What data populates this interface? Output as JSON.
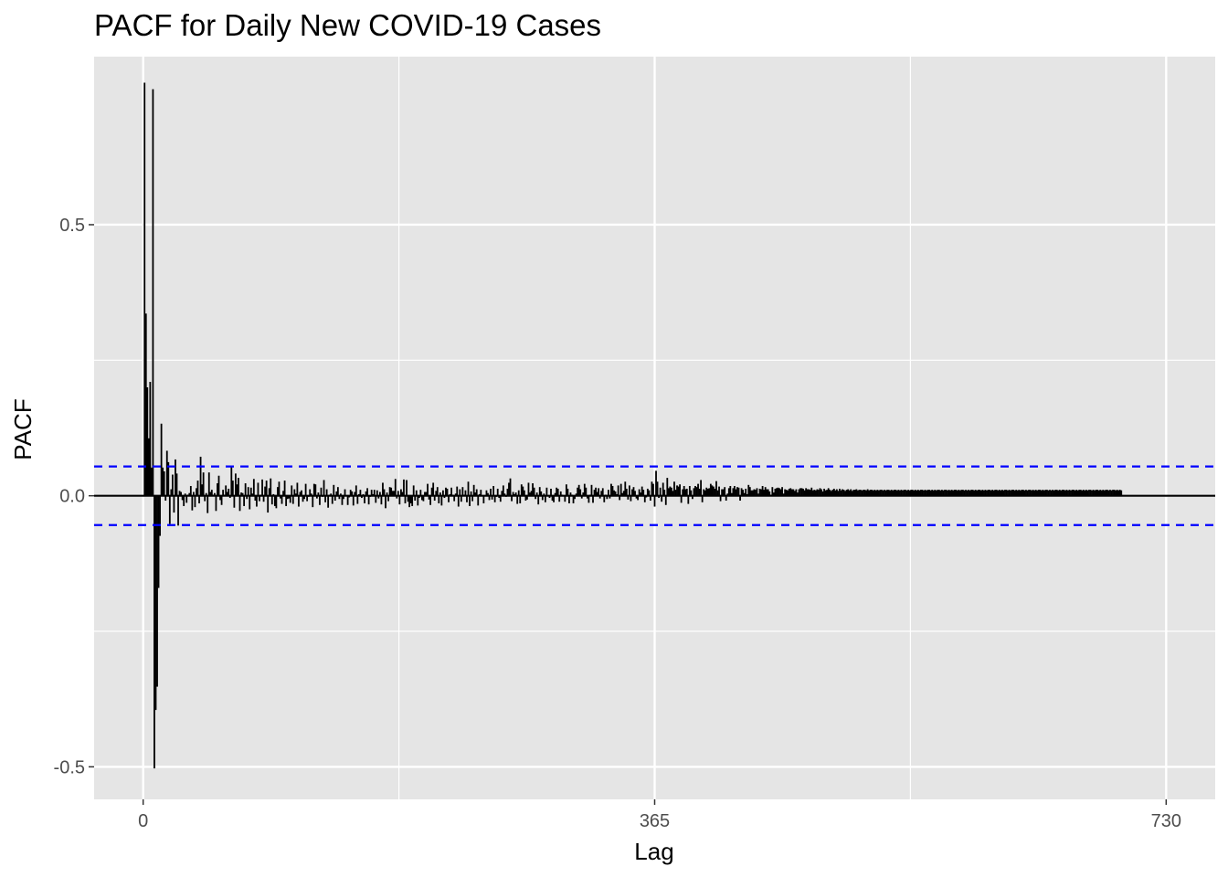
{
  "chart_data": {
    "type": "bar",
    "title": "PACF for Daily New COVID-19 Cases",
    "xlabel": "Lag",
    "ylabel": "PACF",
    "xlim": [
      -35,
      765
    ],
    "ylim": [
      -0.56,
      0.81
    ],
    "x_ticks": [
      0,
      365,
      730
    ],
    "x_tick_labels": [
      "0",
      "365",
      "730"
    ],
    "y_ticks": [
      -0.5,
      0.0,
      0.5
    ],
    "y_tick_labels": [
      "-0.5",
      "0.0",
      "0.5"
    ],
    "y_minor_ticks": [
      -0.25,
      0.25
    ],
    "x_minor_ticks": [
      182.5,
      547.5
    ],
    "confidence_bound": 0.054,
    "grid": true,
    "legend": "none",
    "series": [
      {
        "values": [
          0.762,
          0.336,
          0.2,
          0.106,
          0.21,
          0.052,
          0.75,
          -0.503,
          -0.395,
          -0.352,
          -0.17,
          -0.074,
          0.133,
          0.052,
          0.045,
          -0.009,
          0.083,
          0.062,
          -0.052,
          0.012,
          0.039,
          -0.031,
          0.067,
          0.041,
          -0.055,
          0.009,
          0.007,
          -0.008,
          -0.019,
          0.004,
          -0.013,
          0.002,
          0.005,
          0.018,
          -0.027,
          0.007,
          -0.021,
          0.014,
          0.028,
          -0.014,
          0.072,
          0.021,
          0.043,
          -0.01,
          0.005,
          -0.032,
          0.043,
          0.007,
          0.011,
          0.002,
          0.005,
          -0.028,
          0.023,
          0.037,
          -0.008,
          -0.017,
          0.011,
          0.002,
          0.019,
          0.007,
          0.013,
          -0.004,
          0.053,
          0.028,
          -0.022,
          0.041,
          0.021,
          0.033,
          -0.028,
          0.006,
          0.005,
          -0.019,
          0.023,
          -0.006,
          0.016,
          -0.025,
          0.015,
          0.004,
          0.031,
          -0.009,
          -0.02,
          0.024,
          -0.01,
          0.002,
          0.03,
          -0.011,
          0.017,
          0.028,
          -0.031,
          0.014,
          0.032,
          -0.016,
          0.003,
          -0.019,
          -0.023,
          0.016,
          0.026,
          -0.005,
          -0.015,
          0.009,
          0.028,
          -0.019,
          -0.006,
          -0.005,
          -0.013,
          0.019,
          -0.015,
          0.012,
          0.004,
          0.024,
          -0.02,
          0.007,
          0.01,
          -0.011,
          -0.006,
          0.022,
          -0.01,
          -0.002,
          0.012,
          0.004,
          -0.021,
          0.022,
          0.021,
          -0.005,
          0.006,
          -0.017,
          0.015,
          -0.002,
          0.029,
          -0.012,
          0.012,
          -0.022,
          0.002,
          0.004,
          -0.015,
          0.02,
          -0.009,
          0.008,
          0.016,
          -0.006,
          0.004,
          -0.017,
          -0.006,
          0.012,
          -0.001,
          -0.017,
          -0.003,
          0.011,
          0.008,
          -0.018,
          0.007,
          0.019,
          -0.015,
          0.003,
          0.011,
          -0.004,
          0.003,
          -0.014,
          0.008,
          0.014,
          -0.016,
          -0.002,
          0.011,
          0.003,
          0.011,
          -0.013,
          0.01,
          -0.005,
          0.007,
          -0.016,
          0.024,
          0.012,
          -0.023,
          0.006,
          -0.01,
          0.016,
          0.015,
          0.009,
          0.009,
          0.031,
          -0.005,
          0.009,
          -0.016,
          0.012,
          0.007,
          0.03,
          -0.014,
          0.029,
          -0.011,
          -0.021,
          -0.014,
          -0.019,
          0.019,
          -0.009,
          0.01,
          -0.018,
          -0.004,
          0.011,
          -0.008,
          -0.01,
          0.007,
          0.007,
          0.022,
          -0.007,
          -0.017,
          0.015,
          0.024,
          -0.009,
          0.009,
          0.016,
          -0.014,
          0.006,
          -0.018,
          0.01,
          -0.004,
          0.015,
          0.013,
          -0.012,
          0.003,
          0.015,
          0.002,
          -0.01,
          0.004,
          0.017,
          -0.02,
          0.012,
          -0.011,
          0.016,
          0.002,
          0.01,
          -0.012,
          0.026,
          -0.019,
          0.008,
          -0.01,
          0.02,
          0.006,
          0.012,
          -0.018,
          0.003,
          0.011,
          -0.001,
          -0.014,
          -0.001,
          0.01,
          0.005,
          -0.008,
          0.013,
          -0.007,
          0.018,
          -0.012,
          -0.002,
          0.013,
          -0.004,
          -0.011,
          0.009,
          0.019,
          0.004,
          -0.002,
          0.013,
          0.024,
          0.032,
          -0.01,
          0.007,
          0.003,
          0.006,
          -0.015,
          0.01,
          -0.014,
          0.021,
          0.017,
          0.01,
          -0.009,
          -0.007,
          0.024,
          0.006,
          0.009,
          0.023,
          0.015,
          -0.006,
          0.006,
          -0.016,
          0.016,
          0.008,
          -0.008,
          0.004,
          -0.012,
          0.015,
          0.001,
          -0.004,
          0.013,
          -0.009,
          -0.012,
          0.005,
          0.015,
          0.013,
          -0.011,
          0.008,
          0.002,
          0.001,
          -0.011,
          0.021,
          0.013,
          -0.014,
          0.006,
          0.002,
          -0.014,
          -0.006,
          0.004,
          0.015,
          0.02,
          0.012,
          -0.005,
          0.006,
          0.022,
          0.015,
          -0.005,
          -0.013,
          0.002,
          0.02,
          -0.013,
          0.011,
          0.015,
          0.007,
          0.014,
          -0.005,
          0.009,
          0.014,
          -0.012,
          0.002,
          -0.006,
          0.011,
          -0.005,
          0.022,
          0.018,
          0.01,
          0.008,
          0.003,
          0.019,
          -0.008,
          0.022,
          0.005,
          0.009,
          0.026,
          0.013,
          -0.007,
          0.019,
          -0.01,
          0.012,
          0.016,
          0.009,
          -0.005,
          -0.008,
          0.012,
          0.006,
          0.017,
          0.011,
          -0.012,
          -0.003,
          0.013,
          0.01,
          -0.009,
          0.026,
          0.022,
          -0.02,
          0.046,
          0.026,
          -0.004,
          0.015,
          -0.011,
          0.024,
          0.011,
          -0.017,
          0.033,
          0.014,
          0.017,
          0.015,
          0.009,
          0.026,
          0.011,
          0.019,
          0.017,
          0.021,
          -0.013,
          0.012,
          0.018,
          0.012,
          0.013,
          -0.015,
          0.018,
          0.01,
          -0.006,
          0.014,
          0.018,
          0.016,
          0.022,
          0.013,
          0.029,
          -0.012,
          0.012,
          0.01,
          0.015,
          0.013,
          0.014,
          0.022,
          0.019,
          0.017,
          0.013,
          0.027,
          0.01,
          0.017,
          -0.01,
          0.012,
          0.012,
          0.016,
          -0.009,
          0.004,
          0.014,
          0.018,
          0.005,
          0.014,
          0.018,
          0.012,
          0.016,
          0.015,
          -0.009,
          0.014,
          0.011,
          0.005,
          0.013,
          0.003,
          0.02,
          0.016,
          0.01,
          0.01,
          0.012,
          0.011,
          0.014,
          0.004,
          0.013,
          0.012,
          0.018,
          0.011,
          0.016,
          0.012,
          0.012,
          0.008,
          0.002,
          0.016,
          0.006,
          0.013,
          0.014,
          0.015,
          0.014,
          0.012,
          0.016,
          0.004,
          0.012,
          0.011,
          0.01,
          0.013,
          0.014,
          0.012,
          0.012,
          0.009,
          0.012,
          0.006,
          0.012,
          0.014,
          0.014,
          0.013,
          0.01,
          0.014,
          0.012,
          0.012,
          0.011,
          0.015,
          0.01,
          0.011,
          0.01,
          0.012,
          0.011,
          0.014,
          0.012,
          0.008,
          0.013,
          0.01,
          0.011,
          0.014,
          0.011,
          0.009,
          0.011,
          0.013,
          0.01,
          0.012,
          0.009,
          0.013,
          0.01,
          0.012,
          0.011,
          0.009,
          0.011,
          0.012,
          0.01,
          0.012,
          0.009,
          0.011,
          0.011,
          0.012,
          0.01,
          0.011,
          0.011,
          0.01,
          0.011,
          0.011,
          0.01,
          0.012,
          0.01,
          0.011,
          0.011,
          0.01,
          0.011,
          0.01,
          0.011,
          0.01,
          0.011,
          0.011,
          0.01,
          0.011,
          0.01,
          0.011,
          0.011,
          0.01,
          0.011,
          0.01,
          0.011,
          0.011,
          0.01,
          0.011,
          0.01,
          0.011,
          0.01,
          0.011,
          0.011,
          0.01,
          0.011,
          0.01,
          0.011,
          0.011,
          0.01,
          0.011,
          0.01,
          0.011,
          0.01,
          0.011,
          0.011,
          0.01,
          0.011,
          0.01,
          0.011,
          0.011,
          0.01,
          0.011,
          0.01,
          0.011,
          0.01,
          0.011,
          0.011,
          0.01,
          0.011,
          0.01,
          0.011,
          0.011,
          0.01,
          0.011,
          0.01,
          0.011,
          0.01,
          0.011,
          0.011,
          0.01,
          0.011,
          0.01,
          0.011,
          0.011,
          0.01,
          0.011,
          0.01,
          0.011,
          0.01,
          0.011,
          0.011,
          0.01,
          0.011,
          0.01,
          0.011,
          0.011,
          0.01,
          0.011,
          0.01,
          0.011,
          0.01,
          0.011,
          0.011,
          0.01,
          0.011,
          0.01,
          0.011,
          0.011,
          0.01,
          0.011,
          0.01,
          0.011,
          0.01,
          0.011,
          0.011,
          0.01,
          0.011,
          0.01,
          0.011,
          0.011,
          0.01,
          0.011,
          0.01,
          0.011,
          0.01,
          0.011,
          0.011,
          0.01,
          0.011,
          0.01,
          0.011,
          0.011,
          0.01,
          0.011,
          0.01,
          0.011,
          0.01,
          0.011,
          0.011,
          0.01,
          0.011,
          0.01,
          0.011,
          0.011,
          0.01,
          0.011,
          0.01,
          0.011,
          0.01,
          0.011,
          0.011,
          0.01,
          0.011,
          0.01,
          0.011,
          0.011,
          0.01,
          0.011,
          0.01,
          0.011,
          0.01,
          0.011,
          0.011,
          0.01,
          0.011,
          0.01,
          0.011,
          0.011,
          0.01,
          0.011,
          0.01,
          0.011,
          0.01,
          0.011,
          0.011,
          0.01,
          0.011,
          0.01,
          0.011,
          0.011,
          0.01,
          0.011,
          0.01,
          0.011,
          0.01,
          0.011,
          0.011,
          0.01,
          0.011,
          0.01,
          0.011,
          0.011,
          0.01,
          0.011,
          0.01,
          0.011,
          0.01
        ]
      }
    ]
  },
  "colors": {
    "panel_background": "#e5e5e5",
    "grid_line": "#ffffff",
    "bar": "#000000",
    "confidence_line": "#0000ff",
    "tick_label": "#4d4d4d"
  }
}
